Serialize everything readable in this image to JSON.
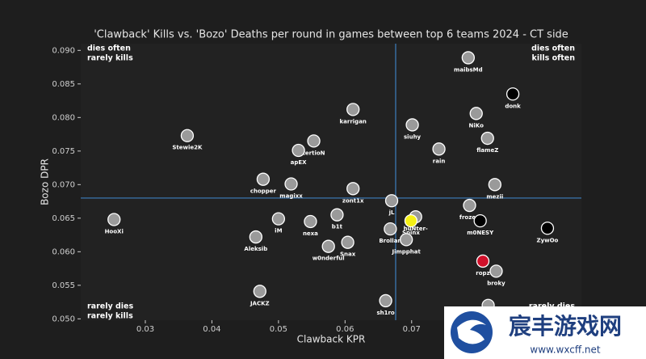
{
  "chart_data": {
    "type": "scatter",
    "title": "'Clawback' Kills vs. 'Bozo' Deaths per round in games between top 6 teams 2024 - CT side",
    "x_label": "Clawback KPR",
    "y_label": "Bozo DPR",
    "xlim": [
      0.0203,
      0.0955
    ],
    "ylim": [
      0.0498,
      0.091
    ],
    "xticks": [
      0.03,
      0.04,
      0.05,
      0.06,
      0.07
    ],
    "yticks": [
      {
        "value": 0.05,
        "label": "0.050"
      },
      {
        "value": 0.055,
        "label": "0.055"
      },
      {
        "value": 0.06,
        "label": "0.060"
      },
      {
        "value": 0.065,
        "label": "0.065"
      },
      {
        "value": 0.07,
        "label": "0.070"
      },
      {
        "value": 0.075,
        "label": "0.075"
      },
      {
        "value": 0.08,
        "label": "0.080"
      },
      {
        "value": 0.085,
        "label": "0.085"
      },
      {
        "value": 0.09,
        "label": "0.090"
      }
    ],
    "vline": 0.0676,
    "hline": 0.068,
    "line_color": "#3d7fbf",
    "labels": [
      "maibsMd",
      "donk",
      "karrigan",
      "NiKo",
      "siuhy",
      "Stewie2K",
      "tertioN",
      "flameZ",
      "rain",
      "apEX",
      "chopper",
      "magixx",
      "mezii",
      "zont1x",
      "jL",
      "huNter-",
      "frozen",
      "b1t",
      "HooXi",
      "iM",
      "nexa",
      "Spinx",
      "m0NESY",
      "ZywOo",
      "Brollan",
      "Aleksib",
      "Jimpphat",
      "Snax",
      "w0nderful",
      "ropz",
      "broky",
      "JACKZ",
      "sh1ro",
      null
    ],
    "x": [
      0.0785,
      0.0852,
      0.0612,
      0.0797,
      0.0701,
      0.0363,
      0.0553,
      0.0814,
      0.0741,
      0.053,
      0.0477,
      0.0519,
      0.0825,
      0.0612,
      0.067,
      0.0706,
      0.0787,
      0.0588,
      0.0253,
      0.05,
      0.0548,
      0.0699,
      0.0803,
      0.0904,
      0.0668,
      0.0466,
      0.0692,
      0.0604,
      0.0575,
      0.0807,
      0.0827,
      0.0472,
      0.0661,
      0.0815
    ],
    "y": [
      0.0889,
      0.0835,
      0.0812,
      0.0806,
      0.0789,
      0.0773,
      0.0765,
      0.0769,
      0.0753,
      0.0751,
      0.0708,
      0.0701,
      0.07,
      0.0694,
      0.0676,
      0.0652,
      0.0669,
      0.0655,
      0.0648,
      0.0649,
      0.0645,
      0.0646,
      0.0646,
      0.0635,
      0.0634,
      0.0622,
      0.0618,
      0.0614,
      0.0608,
      0.0586,
      0.0571,
      0.0541,
      0.0527,
      0.052
    ],
    "colors": [
      "#9a9a9a",
      "#000000",
      "#9a9a9a",
      "#9a9a9a",
      "#9a9a9a",
      "#9a9a9a",
      "#9a9a9a",
      "#9a9a9a",
      "#9a9a9a",
      "#9a9a9a",
      "#9a9a9a",
      "#9a9a9a",
      "#9a9a9a",
      "#9a9a9a",
      "#9a9a9a",
      "#9a9a9a",
      "#9a9a9a",
      "#9a9a9a",
      "#9a9a9a",
      "#9a9a9a",
      "#9a9a9a",
      "#f5f016",
      "#000000",
      "#000000",
      "#9a9a9a",
      "#9a9a9a",
      "#9a9a9a",
      "#9a9a9a",
      "#9a9a9a",
      "#d0102a",
      "#9a9a9a",
      "#9a9a9a",
      "#9a9a9a",
      "#9a9a9a"
    ],
    "annotations": [
      {
        "corner": "top-left",
        "lines": [
          "dies often",
          "rarely kills"
        ]
      },
      {
        "corner": "top-right",
        "lines": [
          "dies often",
          "kills often"
        ]
      },
      {
        "corner": "bottom-left",
        "lines": [
          "rarely dies",
          "rarely kills"
        ]
      },
      {
        "corner": "bottom-right",
        "lines": [
          "rarely dies"
        ]
      }
    ]
  },
  "watermark": {
    "title": "宸丰游戏网",
    "url": "www.wxcff.net"
  }
}
